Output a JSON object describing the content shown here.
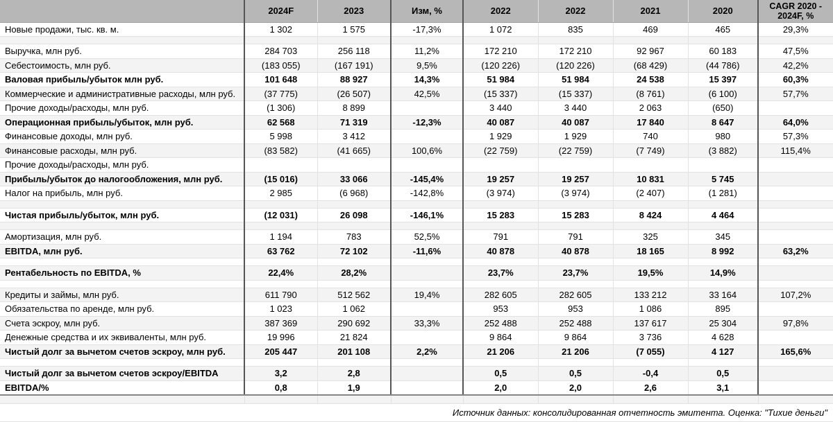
{
  "colors": {
    "header_bg": "#b7b7b7",
    "row_stripe": "#f3f3f3",
    "grid_line": "#e2e2e2",
    "dark_border": "#555555",
    "thick_bottom_border": "#858585"
  },
  "header": {
    "columns": [
      "",
      "2024F",
      "2023",
      "Изм, %",
      "2022",
      "2022",
      "2021",
      "2020",
      "CAGR 2020 - 2024F, %"
    ]
  },
  "rows": [
    {
      "label": "Новые продажи, тыс. кв. м.",
      "values": [
        "1 302",
        "1 575",
        "-17,3%",
        "1 072",
        "835",
        "469",
        "465",
        "29,3%"
      ]
    },
    {
      "empty": true
    },
    {
      "label": "Выручка, млн руб.",
      "values": [
        "284 703",
        "256 118",
        "11,2%",
        "172 210",
        "172 210",
        "92 967",
        "60 183",
        "47,5%"
      ]
    },
    {
      "label": "Себестоимость, млн руб.",
      "values": [
        "(183 055)",
        "(167 191)",
        "9,5%",
        "(120 226)",
        "(120 226)",
        "(68 429)",
        "(44 786)",
        "42,2%"
      ]
    },
    {
      "label": "Валовая прибыль/убыток млн руб.",
      "bold": true,
      "values": [
        "101 648",
        "88 927",
        "14,3%",
        "51 984",
        "51 984",
        "24 538",
        "15 397",
        "60,3%"
      ]
    },
    {
      "label": "Коммерческие и административные расходы, млн руб.",
      "values": [
        "(37 775)",
        "(26 507)",
        "42,5%",
        "(15 337)",
        "(15 337)",
        "(8 761)",
        "(6 100)",
        "57,7%"
      ]
    },
    {
      "label": "Прочие доходы/расходы, млн руб.",
      "values": [
        "(1 306)",
        "8 899",
        "",
        "3 440",
        "3 440",
        "2 063",
        "(650)",
        ""
      ]
    },
    {
      "label": "Операционная прибыль/убыток, млн руб.",
      "bold": true,
      "values": [
        "62 568",
        "71 319",
        "-12,3%",
        "40 087",
        "40 087",
        "17 840",
        "8 647",
        "64,0%"
      ]
    },
    {
      "label": "Финансовые доходы, млн руб.",
      "values": [
        "5 998",
        "3 412",
        "",
        "1 929",
        "1 929",
        "740",
        "980",
        "57,3%"
      ]
    },
    {
      "label": "Финансовые расходы, млн руб.",
      "values": [
        "(83 582)",
        "(41 665)",
        "100,6%",
        "(22 759)",
        "(22 759)",
        "(7 749)",
        "(3 882)",
        "115,4%"
      ]
    },
    {
      "label": "Прочие доходы/расходы, млн руб.",
      "values": [
        "",
        "",
        "",
        "",
        "",
        "",
        "",
        ""
      ]
    },
    {
      "label": "Прибыль/убыток до налогообложения, млн руб.",
      "bold": true,
      "values": [
        "(15 016)",
        "33 066",
        "-145,4%",
        "19 257",
        "19 257",
        "10 831",
        "5 745",
        ""
      ]
    },
    {
      "label": "Налог на прибыль, млн руб.",
      "values": [
        "2 985",
        "(6 968)",
        "-142,8%",
        "(3 974)",
        "(3 974)",
        "(2 407)",
        "(1 281)",
        ""
      ]
    },
    {
      "empty": true
    },
    {
      "label": "Чистая прибыль/убыток, млн руб.",
      "bold": true,
      "values": [
        "(12 031)",
        "26 098",
        "-146,1%",
        "15 283",
        "15 283",
        "8 424",
        "4 464",
        ""
      ]
    },
    {
      "empty": true
    },
    {
      "label": "Амортизация, млн руб.",
      "values": [
        "1 194",
        "783",
        "52,5%",
        "791",
        "791",
        "325",
        "345",
        ""
      ]
    },
    {
      "label": "EBITDA, млн руб.",
      "bold": true,
      "values": [
        "63 762",
        "72 102",
        "-11,6%",
        "40 878",
        "40 878",
        "18 165",
        "8 992",
        "63,2%"
      ]
    },
    {
      "empty": true
    },
    {
      "label": "Рентабельность по EBITDA, %",
      "bold": true,
      "values": [
        "22,4%",
        "28,2%",
        "",
        "23,7%",
        "23,7%",
        "19,5%",
        "14,9%",
        ""
      ]
    },
    {
      "empty": true
    },
    {
      "label": "Кредиты и займы, млн руб.",
      "values": [
        "611 790",
        "512 562",
        "19,4%",
        "282 605",
        "282 605",
        "133 212",
        "33 164",
        "107,2%"
      ]
    },
    {
      "label": "Обязательства по аренде, млн руб.",
      "values": [
        "1 023",
        "1 062",
        "",
        "953",
        "953",
        "1 086",
        "895",
        ""
      ]
    },
    {
      "label": "Счета эскроу, млн руб.",
      "values": [
        "387 369",
        "290 692",
        "33,3%",
        "252 488",
        "252 488",
        "137 617",
        "25 304",
        "97,8%"
      ]
    },
    {
      "label": "Денежные средства и их эквиваленты, млн руб.",
      "values": [
        "19 996",
        "21 824",
        "",
        "9 864",
        "9 864",
        "3 736",
        "4 628",
        ""
      ]
    },
    {
      "label": "Чистый долг за вычетом счетов эскроу, млн руб.",
      "bold": true,
      "values": [
        "205 447",
        "201 108",
        "2,2%",
        "21 206",
        "21 206",
        "(7 055)",
        "4 127",
        "165,6%"
      ]
    },
    {
      "empty": true
    },
    {
      "label": "Чистый долг за вычетом счетов эскроу/EBITDA",
      "bold": true,
      "values": [
        "3,2",
        "2,8",
        "",
        "0,5",
        "0,5",
        "-0,4",
        "0,5",
        ""
      ]
    },
    {
      "label": "EBITDA/%",
      "bold": true,
      "values": [
        "0,8",
        "1,9",
        "",
        "2,0",
        "2,0",
        "2,6",
        "3,1",
        ""
      ]
    }
  ],
  "footer": {
    "source_note": "Источник данных: консолидированная отчетность эмитента. Оценка: \"Тихие деньги\""
  }
}
